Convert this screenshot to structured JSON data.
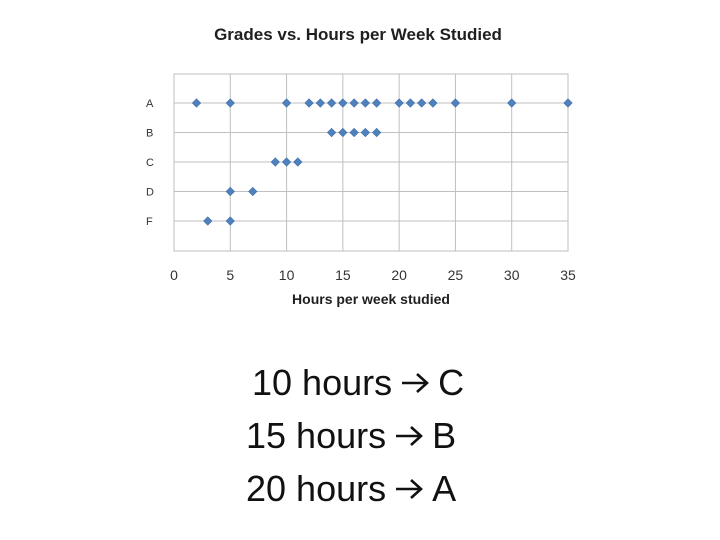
{
  "chart_data": {
    "type": "scatter",
    "title": "Grades vs. Hours per Week Studied",
    "xlabel": "Hours per week studied",
    "ylabel": "",
    "xlim": [
      0,
      35
    ],
    "x_ticks": [
      0,
      5,
      10,
      15,
      20,
      25,
      30,
      35
    ],
    "y_categories": [
      "A",
      "B",
      "C",
      "D",
      "F"
    ],
    "grid": true,
    "legend": "none",
    "marker": "diamond",
    "marker_color": "#4F81BD",
    "points": [
      {
        "x": 2,
        "y": "A"
      },
      {
        "x": 5,
        "y": "A"
      },
      {
        "x": 10,
        "y": "A"
      },
      {
        "x": 12,
        "y": "A"
      },
      {
        "x": 13,
        "y": "A"
      },
      {
        "x": 14,
        "y": "A"
      },
      {
        "x": 15,
        "y": "A"
      },
      {
        "x": 16,
        "y": "A"
      },
      {
        "x": 17,
        "y": "A"
      },
      {
        "x": 18,
        "y": "A"
      },
      {
        "x": 20,
        "y": "A"
      },
      {
        "x": 21,
        "y": "A"
      },
      {
        "x": 22,
        "y": "A"
      },
      {
        "x": 23,
        "y": "A"
      },
      {
        "x": 25,
        "y": "A"
      },
      {
        "x": 30,
        "y": "A"
      },
      {
        "x": 35,
        "y": "A"
      },
      {
        "x": 14,
        "y": "B"
      },
      {
        "x": 15,
        "y": "B"
      },
      {
        "x": 16,
        "y": "B"
      },
      {
        "x": 17,
        "y": "B"
      },
      {
        "x": 18,
        "y": "B"
      },
      {
        "x": 9,
        "y": "C"
      },
      {
        "x": 10,
        "y": "C"
      },
      {
        "x": 11,
        "y": "C"
      },
      {
        "x": 5,
        "y": "D"
      },
      {
        "x": 7,
        "y": "D"
      },
      {
        "x": 3,
        "y": "F"
      },
      {
        "x": 5,
        "y": "F"
      }
    ]
  },
  "summary": [
    {
      "hours": "10 hours",
      "grade": "C"
    },
    {
      "hours": "15 hours",
      "grade": "B"
    },
    {
      "hours": "20 hours",
      "grade": "A"
    }
  ],
  "icons": {
    "arrow": "right-arrow-icon"
  }
}
